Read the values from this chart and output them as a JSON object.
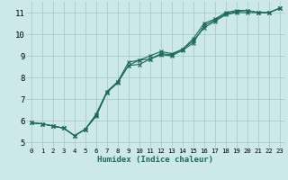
{
  "xlabel": "Humidex (Indice chaleur)",
  "bg_color": "#cce8e8",
  "grid_color": "#aacccc",
  "line_color": "#1a6b5a",
  "xlim": [
    -0.5,
    23.5
  ],
  "ylim": [
    4.75,
    11.5
  ],
  "xticks": [
    0,
    1,
    2,
    3,
    4,
    5,
    6,
    7,
    8,
    9,
    10,
    11,
    12,
    13,
    14,
    15,
    16,
    17,
    18,
    19,
    20,
    21,
    22,
    23
  ],
  "yticks": [
    5,
    6,
    7,
    8,
    9,
    10,
    11
  ],
  "line1_x": [
    0,
    1,
    2,
    3,
    4,
    5,
    6,
    7,
    8,
    9,
    10,
    11,
    12,
    13,
    14,
    15,
    16,
    17,
    18,
    19,
    20,
    21,
    22,
    23
  ],
  "line1_y": [
    5.9,
    5.85,
    5.75,
    5.65,
    5.3,
    5.6,
    6.2,
    7.3,
    7.75,
    8.55,
    8.8,
    8.85,
    9.05,
    9.0,
    9.25,
    9.6,
    10.4,
    10.65,
    10.95,
    11.05,
    11.1,
    11.0,
    11.0,
    11.2
  ],
  "line2_x": [
    0,
    1,
    2,
    3,
    4,
    5,
    6,
    7,
    8,
    9,
    10,
    11,
    12,
    13,
    14,
    15,
    16,
    17,
    18,
    19,
    20,
    21,
    22,
    23
  ],
  "line2_y": [
    5.9,
    5.85,
    5.75,
    5.65,
    5.3,
    5.6,
    6.3,
    7.35,
    7.8,
    8.7,
    8.8,
    9.0,
    9.2,
    9.1,
    9.3,
    9.8,
    10.5,
    10.7,
    11.0,
    11.1,
    11.1,
    11.0,
    11.0,
    11.2
  ],
  "line3_x": [
    0,
    1,
    2,
    3,
    4,
    5,
    6,
    7,
    8,
    9,
    10,
    11,
    12,
    13,
    14,
    15,
    16,
    17,
    18,
    19,
    20,
    21,
    22,
    23
  ],
  "line3_y": [
    5.9,
    5.85,
    5.75,
    5.65,
    5.3,
    5.6,
    6.25,
    7.3,
    7.8,
    8.55,
    8.6,
    8.85,
    9.1,
    9.05,
    9.3,
    9.7,
    10.3,
    10.6,
    10.9,
    11.0,
    11.0,
    11.0,
    11.0,
    11.2
  ]
}
